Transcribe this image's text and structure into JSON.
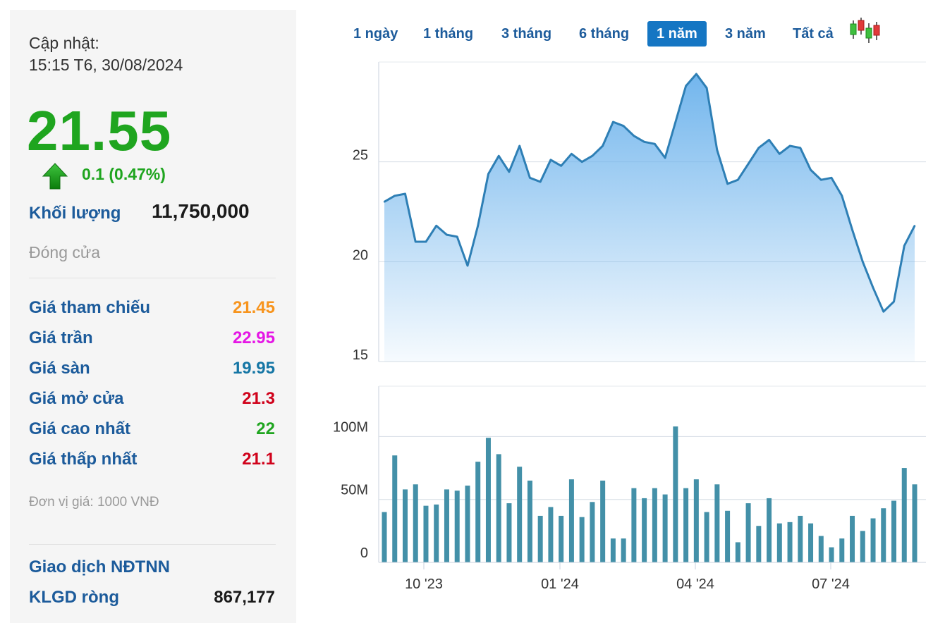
{
  "info": {
    "updated_label": "Cập nhật:",
    "updated_time": "15:15 T6, 30/08/2024",
    "price": "21.55",
    "change": "0.1 (0.47%)",
    "volume_label": "Khối lượng",
    "volume_value": "11,750,000",
    "status": "Đóng cửa",
    "rows": [
      {
        "label": "Giá tham chiếu",
        "value": "21.45",
        "color": "#f7941d"
      },
      {
        "label": "Giá trần",
        "value": "22.95",
        "color": "#e516e5"
      },
      {
        "label": "Giá sàn",
        "value": "19.95",
        "color": "#1576a5"
      },
      {
        "label": "Giá mở cửa",
        "value": "21.3",
        "color": "#d0021b"
      },
      {
        "label": "Giá cao nhất",
        "value": "22",
        "color": "#1fa51f"
      },
      {
        "label": "Giá thấp nhất",
        "value": "21.1",
        "color": "#d0021b"
      }
    ],
    "unit_note": "Đơn vị giá: 1000 VNĐ",
    "foreign_title": "Giao dịch NĐTNN",
    "net_label": "KLGD ròng",
    "net_value": "867,177"
  },
  "tabs": [
    "1 ngày",
    "1 tháng",
    "3 tháng",
    "6 tháng",
    "1 năm",
    "3 năm",
    "Tất cả"
  ],
  "active_tab": "1 năm",
  "icons": {
    "trend_up": "green-up-arrow-icon",
    "candles": "candlestick-icon"
  },
  "chart_data": {
    "type": "area",
    "x_tick_labels": [
      "10 '23",
      "01 '24",
      "04 '24",
      "07 '24"
    ],
    "price": {
      "ylim": [
        15,
        30
      ],
      "yticks": [
        15,
        20,
        25
      ],
      "color": "#2e7fb5",
      "values": [
        23.0,
        23.3,
        23.4,
        21.0,
        21.0,
        21.8,
        21.35,
        21.25,
        19.8,
        21.8,
        24.4,
        25.3,
        24.5,
        25.8,
        24.2,
        24.0,
        25.1,
        24.8,
        25.4,
        25.0,
        25.3,
        25.8,
        27.0,
        26.8,
        26.3,
        26.0,
        25.9,
        25.2,
        27.0,
        28.8,
        29.4,
        28.7,
        25.6,
        23.9,
        24.1,
        24.9,
        25.7,
        26.1,
        25.4,
        25.8,
        25.7,
        24.6,
        24.1,
        24.2,
        23.3,
        21.6,
        20.0,
        18.7,
        17.5,
        18.0,
        20.8,
        21.8
      ]
    },
    "volume": {
      "ylim": [
        0,
        140
      ],
      "yticks": [
        0,
        50,
        100
      ],
      "ytick_labels": [
        "0",
        "50M",
        "100M"
      ],
      "color": "#4390a8",
      "values": [
        40,
        85,
        58,
        62,
        45,
        46,
        58,
        57,
        61,
        80,
        99,
        86,
        47,
        76,
        65,
        37,
        44,
        37,
        66,
        36,
        48,
        65,
        19,
        19,
        59,
        51,
        59,
        54,
        108,
        59,
        66,
        40,
        62,
        41,
        16,
        47,
        29,
        51,
        31,
        32,
        37,
        31,
        21,
        12,
        19,
        37,
        25,
        35,
        43,
        49,
        75,
        62
      ]
    }
  }
}
